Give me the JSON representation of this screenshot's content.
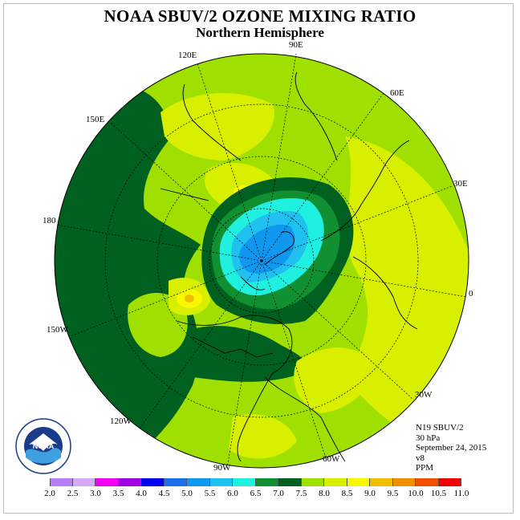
{
  "title": "NOAA SBUV/2 OZONE MIXING RATIO",
  "subtitle": "Northern Hemisphere",
  "longitude_labels": [
    {
      "id": "lon-90e",
      "text": "90E"
    },
    {
      "id": "lon-120e",
      "text": "120E"
    },
    {
      "id": "lon-60e",
      "text": "60E"
    },
    {
      "id": "lon-150e",
      "text": "150E"
    },
    {
      "id": "lon-30e",
      "text": "30E"
    },
    {
      "id": "lon-180",
      "text": "180"
    },
    {
      "id": "lon-0",
      "text": "0"
    },
    {
      "id": "lon-150w",
      "text": "150W"
    },
    {
      "id": "lon-30w",
      "text": "30W"
    },
    {
      "id": "lon-120w",
      "text": "120W"
    },
    {
      "id": "lon-60w",
      "text": "60W"
    },
    {
      "id": "lon-90w",
      "text": "90W"
    }
  ],
  "info": {
    "instrument": "N19 SBUV/2",
    "level": "30 hPa",
    "date": "September 24, 2015",
    "version": "v8",
    "units": "PPM"
  },
  "colorbar": {
    "ticks": [
      "2.0",
      "2.5",
      "3.0",
      "3.5",
      "4.0",
      "4.5",
      "5.0",
      "5.5",
      "6.0",
      "6.5",
      "7.0",
      "7.5",
      "8.0",
      "8.5",
      "9.0",
      "9.5",
      "10.0",
      "10.5",
      "11.0"
    ],
    "colors": [
      "#b880f8",
      "#d8a8f8",
      "#f000f0",
      "#a000e0",
      "#0000f0",
      "#1c70f0",
      "#1098f0",
      "#20c0f0",
      "#20f0e0",
      "#109030",
      "#006020",
      "#a0e000",
      "#d8f000",
      "#f8f800",
      "#f0c000",
      "#f09000",
      "#f05000",
      "#f00000",
      "#a06040"
    ]
  },
  "logo_text": "NOAA"
}
